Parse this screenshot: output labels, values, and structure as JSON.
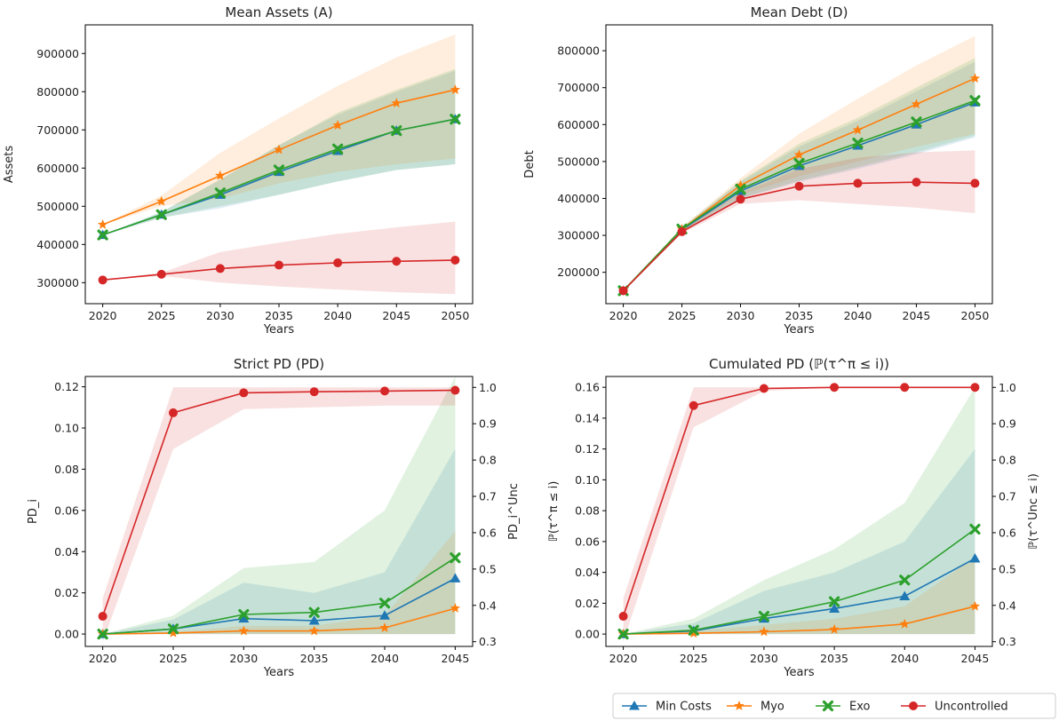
{
  "colors": {
    "Min Costs": "#1f77b4",
    "Myo": "#ff7f0e",
    "Exo": "#2ca02c",
    "Uncontrolled": "#d62728"
  },
  "legend": {
    "entries": [
      {
        "name": "Min Costs",
        "marker": "triangle"
      },
      {
        "name": "Myo",
        "marker": "star"
      },
      {
        "name": "Exo",
        "marker": "x"
      },
      {
        "name": "Uncontrolled",
        "marker": "circle"
      }
    ]
  },
  "chart_data": [
    {
      "type": "line",
      "title": "Mean Assets (A)",
      "title_math": "A",
      "title_prefix": "Mean Assets ",
      "xlabel": "Years",
      "ylabel": "Assets",
      "x": [
        2020,
        2025,
        2030,
        2035,
        2040,
        2045,
        2050
      ],
      "ylim": [
        245000,
        975000
      ],
      "yticks": [
        300000,
        400000,
        500000,
        600000,
        700000,
        800000,
        900000
      ],
      "series": [
        {
          "name": "Min Costs",
          "values": [
            425000,
            478000,
            530000,
            590000,
            645000,
            698000,
            728000
          ],
          "band": [
            [
              425000,
              425000
            ],
            [
              470000,
              485000
            ],
            [
              495000,
              570000
            ],
            [
              530000,
              660000
            ],
            [
              565000,
              740000
            ],
            [
              595000,
              800000
            ],
            [
              610000,
              855000
            ]
          ]
        },
        {
          "name": "Myo",
          "values": [
            452000,
            513000,
            580000,
            648000,
            712000,
            770000,
            805000
          ],
          "band": [
            [
              452000,
              452000
            ],
            [
              500000,
              528000
            ],
            [
              520000,
              640000
            ],
            [
              560000,
              730000
            ],
            [
              590000,
              815000
            ],
            [
              610000,
              890000
            ],
            [
              625000,
              950000
            ]
          ]
        },
        {
          "name": "Exo",
          "values": [
            425000,
            478000,
            535000,
            595000,
            650000,
            698000,
            728000
          ],
          "band": [
            [
              425000,
              425000
            ],
            [
              470000,
              485000
            ],
            [
              500000,
              570000
            ],
            [
              530000,
              660000
            ],
            [
              565000,
              745000
            ],
            [
              595000,
              805000
            ],
            [
              610000,
              860000
            ]
          ]
        },
        {
          "name": "Uncontrolled",
          "values": [
            307000,
            322000,
            337000,
            346000,
            352000,
            356000,
            359000
          ],
          "band": [
            [
              307000,
              307000
            ],
            [
              318000,
              326000
            ],
            [
              300000,
              380000
            ],
            [
              290000,
              405000
            ],
            [
              282000,
              428000
            ],
            [
              275000,
              445000
            ],
            [
              270000,
              460000
            ]
          ]
        }
      ]
    },
    {
      "type": "line",
      "title": "Mean Debt (D)",
      "title_math": "D",
      "title_prefix": "Mean Debt ",
      "xlabel": "Years",
      "ylabel": "Debt",
      "x": [
        2020,
        2025,
        2030,
        2035,
        2040,
        2045,
        2050
      ],
      "ylim": [
        115000,
        870000
      ],
      "yticks": [
        200000,
        300000,
        400000,
        500000,
        600000,
        700000,
        800000
      ],
      "series": [
        {
          "name": "Min Costs",
          "values": [
            150000,
            315000,
            420000,
            488000,
            543000,
            600000,
            660000
          ],
          "band": [
            [
              150000,
              150000
            ],
            [
              310000,
              320000
            ],
            [
              400000,
              445000
            ],
            [
              445000,
              540000
            ],
            [
              480000,
              610000
            ],
            [
              520000,
              690000
            ],
            [
              565000,
              770000
            ]
          ]
        },
        {
          "name": "Myo",
          "values": [
            150000,
            317000,
            435000,
            518000,
            585000,
            655000,
            725000
          ],
          "band": [
            [
              150000,
              150000
            ],
            [
              310000,
              322000
            ],
            [
              410000,
              455000
            ],
            [
              460000,
              575000
            ],
            [
              500000,
              670000
            ],
            [
              540000,
              760000
            ],
            [
              575000,
              840000
            ]
          ]
        },
        {
          "name": "Exo",
          "values": [
            150000,
            317000,
            425000,
            495000,
            550000,
            607000,
            665000
          ],
          "band": [
            [
              150000,
              150000
            ],
            [
              310000,
              322000
            ],
            [
              400000,
              448000
            ],
            [
              448000,
              548000
            ],
            [
              485000,
              618000
            ],
            [
              525000,
              700000
            ],
            [
              570000,
              780000
            ]
          ]
        },
        {
          "name": "Uncontrolled",
          "values": [
            150000,
            310000,
            398000,
            433000,
            441000,
            444000,
            441000
          ],
          "band": [
            [
              150000,
              150000
            ],
            [
              305000,
              318000
            ],
            [
              385000,
              415000
            ],
            [
              395000,
              480000
            ],
            [
              385000,
              510000
            ],
            [
              375000,
              525000
            ],
            [
              360000,
              530000
            ]
          ]
        }
      ]
    },
    {
      "type": "line",
      "title": "Strict PD (PD)",
      "title_math": "PD",
      "title_prefix": "Strict PD ",
      "xlabel": "Years",
      "ylabel": "PD_i",
      "ylabel_right": "PD_i^Unc",
      "x": [
        2020,
        2025,
        2030,
        2035,
        2040,
        2045
      ],
      "ylim": [
        -0.006,
        0.125
      ],
      "yticks": [
        0.0,
        0.02,
        0.04,
        0.06,
        0.08,
        0.1,
        0.12
      ],
      "y2lim": [
        0.287,
        1.03
      ],
      "y2ticks": [
        0.3,
        0.4,
        0.5,
        0.6,
        0.7,
        0.8,
        0.9,
        1.0
      ],
      "series": [
        {
          "name": "Min Costs",
          "values": [
            0.0,
            0.0025,
            0.0075,
            0.0065,
            0.009,
            0.027
          ],
          "band": [
            [
              0,
              0
            ],
            [
              0,
              0.007
            ],
            [
              0,
              0.025
            ],
            [
              0,
              0.02
            ],
            [
              0,
              0.03
            ],
            [
              0,
              0.09
            ]
          ]
        },
        {
          "name": "Myo",
          "values": [
            0.0,
            0.0005,
            0.0015,
            0.0015,
            0.003,
            0.0125
          ],
          "band": [
            [
              0,
              0
            ],
            [
              0,
              0.001
            ],
            [
              0,
              0.004
            ],
            [
              0,
              0.004
            ],
            [
              0,
              0.009
            ],
            [
              0,
              0.05
            ]
          ]
        },
        {
          "name": "Exo",
          "values": [
            0.0,
            0.0025,
            0.0095,
            0.0105,
            0.015,
            0.037
          ],
          "band": [
            [
              0,
              0
            ],
            [
              0,
              0.009
            ],
            [
              0,
              0.032
            ],
            [
              0,
              0.035
            ],
            [
              0,
              0.06
            ],
            [
              0,
              0.125
            ]
          ]
        },
        {
          "name": "Uncontrolled",
          "axis": "right",
          "values": [
            0.37,
            0.93,
            0.985,
            0.988,
            0.99,
            0.992
          ],
          "band": [
            [
              0.3,
              0.42
            ],
            [
              0.83,
              1.0
            ],
            [
              0.94,
              1.0
            ],
            [
              0.945,
              1.0
            ],
            [
              0.95,
              1.0
            ],
            [
              0.95,
              1.0
            ]
          ]
        }
      ]
    },
    {
      "type": "line",
      "title": "Cumulated PD (ℙ(τ^π ≤ i))",
      "title_math": "ℙ(τπ ≤ i)",
      "title_prefix": "Cumulated PD ",
      "xlabel": "Years",
      "ylabel": "ℙ(τ^π ≤ i)",
      "ylabel_right": "ℙ(τ^Unc ≤ i)",
      "x": [
        2020,
        2025,
        2030,
        2035,
        2040,
        2045
      ],
      "ylim": [
        -0.008,
        0.167
      ],
      "yticks": [
        0.0,
        0.02,
        0.04,
        0.06,
        0.08,
        0.1,
        0.12,
        0.14,
        0.16
      ],
      "y2lim": [
        0.287,
        1.03
      ],
      "y2ticks": [
        0.3,
        0.4,
        0.5,
        0.6,
        0.7,
        0.8,
        0.9,
        1.0
      ],
      "series": [
        {
          "name": "Min Costs",
          "values": [
            0.0,
            0.002,
            0.01,
            0.0165,
            0.0245,
            0.049
          ],
          "band": [
            [
              0,
              0
            ],
            [
              0,
              0.007
            ],
            [
              0,
              0.028
            ],
            [
              0,
              0.04
            ],
            [
              0,
              0.06
            ],
            [
              0,
              0.12
            ]
          ]
        },
        {
          "name": "Myo",
          "values": [
            0.0,
            0.0005,
            0.0015,
            0.003,
            0.0065,
            0.018
          ],
          "band": [
            [
              0,
              0
            ],
            [
              0,
              0.002
            ],
            [
              0,
              0.006
            ],
            [
              0,
              0.01
            ],
            [
              0,
              0.018
            ],
            [
              0,
              0.05
            ]
          ]
        },
        {
          "name": "Exo",
          "values": [
            0.0,
            0.0025,
            0.0115,
            0.021,
            0.035,
            0.068
          ],
          "band": [
            [
              0,
              0
            ],
            [
              0,
              0.01
            ],
            [
              0,
              0.035
            ],
            [
              0,
              0.055
            ],
            [
              0,
              0.085
            ],
            [
              0,
              0.16
            ]
          ]
        },
        {
          "name": "Uncontrolled",
          "axis": "right",
          "values": [
            0.37,
            0.95,
            0.997,
            1.0,
            1.0,
            1.0
          ],
          "band": [
            [
              0.3,
              0.42
            ],
            [
              0.89,
              1.0
            ],
            [
              0.99,
              1.0
            ],
            [
              1.0,
              1.0
            ],
            [
              1.0,
              1.0
            ],
            [
              1.0,
              1.0
            ]
          ]
        }
      ]
    }
  ]
}
